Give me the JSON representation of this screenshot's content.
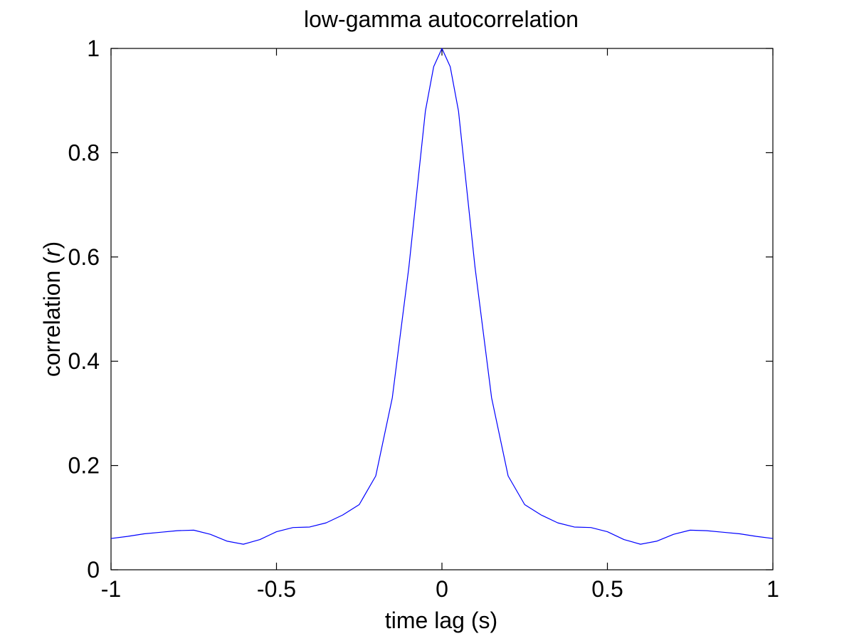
{
  "chart_data": {
    "type": "line",
    "title": "low-gamma autocorrelation",
    "xlabel": "time lag (s)",
    "ylabel": {
      "prefix": "correlation (",
      "symbol": "r",
      "suffix": ")"
    },
    "xlim": [
      -1,
      1
    ],
    "ylim": [
      0,
      1
    ],
    "xticks": [
      -1,
      -0.5,
      0,
      0.5,
      1
    ],
    "xtick_labels": [
      "-1",
      "-0.5",
      "0",
      "0.5",
      "1"
    ],
    "yticks": [
      0,
      0.2,
      0.4,
      0.6,
      0.8,
      1
    ],
    "ytick_labels": [
      "0",
      "0.2",
      "0.4",
      "0.6",
      "0.8",
      "1"
    ],
    "grid": false,
    "line_color": "#0000ff",
    "axis_color": "#000000",
    "series": [
      {
        "x": [
          -1.0,
          -0.95,
          -0.9,
          -0.85,
          -0.8,
          -0.75,
          -0.7,
          -0.65,
          -0.6,
          -0.55,
          -0.5,
          -0.45,
          -0.4,
          -0.35,
          -0.3,
          -0.25,
          -0.2,
          -0.15,
          -0.1,
          -0.05,
          -0.025,
          0.0,
          0.025,
          0.05,
          0.1,
          0.15,
          0.2,
          0.25,
          0.3,
          0.35,
          0.4,
          0.45,
          0.5,
          0.55,
          0.6,
          0.65,
          0.7,
          0.75,
          0.8,
          0.85,
          0.9,
          0.95,
          1.0
        ],
        "y": [
          0.06,
          0.064,
          0.069,
          0.072,
          0.075,
          0.076,
          0.068,
          0.055,
          0.049,
          0.058,
          0.073,
          0.081,
          0.082,
          0.09,
          0.105,
          0.125,
          0.18,
          0.33,
          0.58,
          0.88,
          0.965,
          1.0,
          0.965,
          0.88,
          0.58,
          0.33,
          0.18,
          0.125,
          0.105,
          0.09,
          0.082,
          0.081,
          0.073,
          0.058,
          0.049,
          0.055,
          0.068,
          0.076,
          0.075,
          0.072,
          0.069,
          0.064,
          0.06
        ]
      }
    ]
  }
}
